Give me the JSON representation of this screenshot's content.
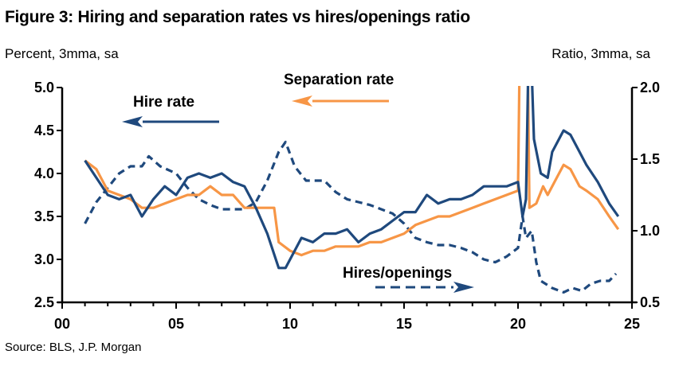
{
  "chart_data": {
    "type": "line",
    "title": "Figure 3: Hiring and separation rates vs hires/openings ratio",
    "ylabel": "Percent, 3mma, sa",
    "y2label": "Ratio, 3mma, sa",
    "source": "Source: BLS, J.P. Morgan",
    "xlim": [
      0,
      25
    ],
    "ylim": [
      2.5,
      5.0
    ],
    "y2lim": [
      0.5,
      2.0
    ],
    "xticks": [
      "00",
      "05",
      "10",
      "15",
      "20",
      "25"
    ],
    "yticks": [
      "2.5",
      "3.0",
      "3.5",
      "4.0",
      "4.5",
      "5.0"
    ],
    "y2ticks": [
      "0.5",
      "1.0",
      "1.5",
      "2.0"
    ],
    "grid": false,
    "series": [
      {
        "name": "Hire rate",
        "axis": "left",
        "color": "#1F497D",
        "style": "solid",
        "arrow": "left",
        "x": [
          1.0,
          1.5,
          2.0,
          2.5,
          3.0,
          3.5,
          4.0,
          4.5,
          5.0,
          5.5,
          6.0,
          6.5,
          7.0,
          7.5,
          8.0,
          8.5,
          9.0,
          9.5,
          9.8,
          10.2,
          10.5,
          11.0,
          11.5,
          12.0,
          12.5,
          13.0,
          13.5,
          14.0,
          14.5,
          15.0,
          15.5,
          16.0,
          16.5,
          17.0,
          17.5,
          18.0,
          18.5,
          19.0,
          19.5,
          20.0,
          20.2,
          20.35,
          20.5,
          20.7,
          21.0,
          21.3,
          21.5,
          21.9,
          22.0,
          22.3,
          22.6,
          23.0,
          23.5,
          24.0,
          24.4
        ],
        "y": [
          4.15,
          3.95,
          3.75,
          3.7,
          3.75,
          3.5,
          3.7,
          3.85,
          3.75,
          3.95,
          4.0,
          3.95,
          4.0,
          3.9,
          3.85,
          3.6,
          3.3,
          2.9,
          2.9,
          3.1,
          3.25,
          3.2,
          3.3,
          3.3,
          3.35,
          3.2,
          3.3,
          3.35,
          3.45,
          3.55,
          3.55,
          3.75,
          3.65,
          3.7,
          3.7,
          3.75,
          3.85,
          3.85,
          3.85,
          3.9,
          3.5,
          3.7,
          6.0,
          4.4,
          4.0,
          3.95,
          4.25,
          4.45,
          4.5,
          4.45,
          4.3,
          4.1,
          3.9,
          3.65,
          3.5
        ]
      },
      {
        "name": "Separation rate",
        "axis": "left",
        "color": "#F79646",
        "style": "solid",
        "arrow": "left",
        "x": [
          1.0,
          1.5,
          2.0,
          2.5,
          3.0,
          3.5,
          4.0,
          4.5,
          5.0,
          5.5,
          6.0,
          6.5,
          7.0,
          7.5,
          8.0,
          8.5,
          9.3,
          9.5,
          10.0,
          10.5,
          11.0,
          11.5,
          12.0,
          12.5,
          13.0,
          13.5,
          14.0,
          14.5,
          15.0,
          15.5,
          16.0,
          16.5,
          17.0,
          17.5,
          18.0,
          18.5,
          19.0,
          19.5,
          20.0,
          20.1,
          20.4,
          20.5,
          20.8,
          21.1,
          21.3,
          21.7,
          22.0,
          22.3,
          22.7,
          23.0,
          23.5,
          24.0,
          24.4
        ],
        "y": [
          4.15,
          4.05,
          3.8,
          3.75,
          3.7,
          3.6,
          3.6,
          3.65,
          3.7,
          3.75,
          3.75,
          3.85,
          3.75,
          3.75,
          3.6,
          3.6,
          3.6,
          3.2,
          3.1,
          3.05,
          3.1,
          3.1,
          3.15,
          3.15,
          3.15,
          3.2,
          3.2,
          3.25,
          3.3,
          3.4,
          3.45,
          3.5,
          3.5,
          3.55,
          3.6,
          3.65,
          3.7,
          3.75,
          3.8,
          6.0,
          6.0,
          3.6,
          3.65,
          3.85,
          3.75,
          3.95,
          4.1,
          4.05,
          3.85,
          3.8,
          3.7,
          3.5,
          3.35
        ]
      },
      {
        "name": "Hires/openings",
        "axis": "right",
        "color": "#1F497D",
        "style": "dashed",
        "arrow": "right",
        "x": [
          1.0,
          1.5,
          2.0,
          2.5,
          3.0,
          3.5,
          3.8,
          4.3,
          5.0,
          5.5,
          6.0,
          6.5,
          7.0,
          7.5,
          8.0,
          8.5,
          9.0,
          9.5,
          9.8,
          10.2,
          10.7,
          11.5,
          12.0,
          12.5,
          13.0,
          13.5,
          14.0,
          14.5,
          15.0,
          15.5,
          16.0,
          16.5,
          17.0,
          17.5,
          18.0,
          18.5,
          19.0,
          19.5,
          20.0,
          20.2,
          20.35,
          20.6,
          20.8,
          21.0,
          21.5,
          22.0,
          22.4,
          22.8,
          23.2,
          23.6,
          24.0,
          24.3
        ],
        "y": [
          1.05,
          1.2,
          1.3,
          1.4,
          1.45,
          1.45,
          1.52,
          1.45,
          1.4,
          1.3,
          1.22,
          1.18,
          1.15,
          1.15,
          1.15,
          1.2,
          1.35,
          1.55,
          1.62,
          1.45,
          1.35,
          1.35,
          1.27,
          1.22,
          1.2,
          1.18,
          1.15,
          1.12,
          1.05,
          0.95,
          0.92,
          0.9,
          0.9,
          0.88,
          0.85,
          0.8,
          0.78,
          0.82,
          0.88,
          1.1,
          0.95,
          1.0,
          0.78,
          0.65,
          0.6,
          0.57,
          0.6,
          0.58,
          0.63,
          0.65,
          0.65,
          0.7
        ]
      }
    ]
  }
}
